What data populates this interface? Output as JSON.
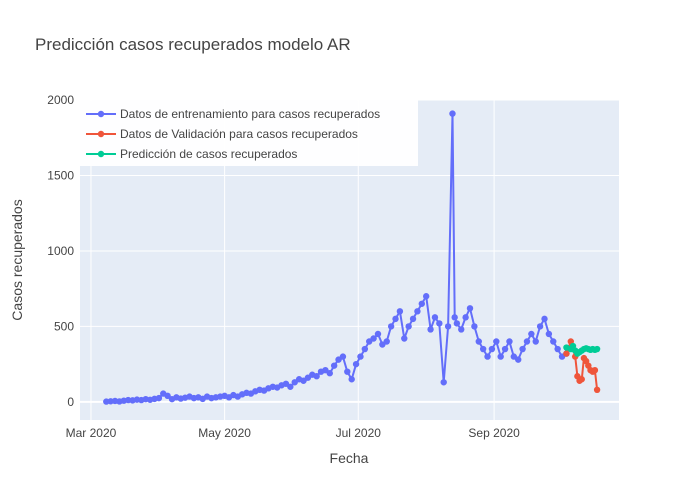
{
  "chart_data": {
    "type": "line",
    "title": "Predicción casos recuperados modelo AR",
    "xlabel": "Fecha",
    "ylabel": "Casos  recuperados",
    "x_type": "date",
    "xlim": [
      "2020-02-25",
      "2020-10-28"
    ],
    "ylim": [
      -120,
      2000
    ],
    "grid": true,
    "legend_position": "top-left",
    "x_ticks": [
      {
        "date": "2020-03-01",
        "label": "Mar 2020"
      },
      {
        "date": "2020-05-01",
        "label": "May 2020"
      },
      {
        "date": "2020-07-01",
        "label": "Jul 2020"
      },
      {
        "date": "2020-09-01",
        "label": "Sep 2020"
      }
    ],
    "y_ticks": [
      0,
      500,
      1000,
      1500,
      2000
    ],
    "series": [
      {
        "name": "Datos de entrenamiento para casos recuperados",
        "color": "#636efa",
        "x": [
          "2020-03-08",
          "2020-03-10",
          "2020-03-12",
          "2020-03-14",
          "2020-03-16",
          "2020-03-18",
          "2020-03-20",
          "2020-03-22",
          "2020-03-24",
          "2020-03-26",
          "2020-03-28",
          "2020-03-30",
          "2020-04-01",
          "2020-04-03",
          "2020-04-05",
          "2020-04-07",
          "2020-04-09",
          "2020-04-11",
          "2020-04-13",
          "2020-04-15",
          "2020-04-17",
          "2020-04-19",
          "2020-04-21",
          "2020-04-23",
          "2020-04-25",
          "2020-04-27",
          "2020-04-29",
          "2020-05-01",
          "2020-05-03",
          "2020-05-05",
          "2020-05-07",
          "2020-05-09",
          "2020-05-11",
          "2020-05-13",
          "2020-05-15",
          "2020-05-17",
          "2020-05-19",
          "2020-05-21",
          "2020-05-23",
          "2020-05-25",
          "2020-05-27",
          "2020-05-29",
          "2020-05-31",
          "2020-06-02",
          "2020-06-04",
          "2020-06-06",
          "2020-06-08",
          "2020-06-10",
          "2020-06-12",
          "2020-06-14",
          "2020-06-16",
          "2020-06-18",
          "2020-06-20",
          "2020-06-22",
          "2020-06-24",
          "2020-06-26",
          "2020-06-28",
          "2020-06-30",
          "2020-07-02",
          "2020-07-04",
          "2020-07-06",
          "2020-07-08",
          "2020-07-10",
          "2020-07-12",
          "2020-07-14",
          "2020-07-16",
          "2020-07-18",
          "2020-07-20",
          "2020-07-22",
          "2020-07-24",
          "2020-07-26",
          "2020-07-28",
          "2020-07-30",
          "2020-08-01",
          "2020-08-03",
          "2020-08-05",
          "2020-08-07",
          "2020-08-09",
          "2020-08-11",
          "2020-08-13",
          "2020-08-14",
          "2020-08-15",
          "2020-08-17",
          "2020-08-19",
          "2020-08-21",
          "2020-08-23",
          "2020-08-25",
          "2020-08-27",
          "2020-08-29",
          "2020-08-31",
          "2020-09-02",
          "2020-09-04",
          "2020-09-06",
          "2020-09-08",
          "2020-09-10",
          "2020-09-12",
          "2020-09-14",
          "2020-09-16",
          "2020-09-18",
          "2020-09-20",
          "2020-09-22",
          "2020-09-24",
          "2020-09-26",
          "2020-09-28",
          "2020-09-30",
          "2020-10-02",
          "2020-10-04"
        ],
        "y": [
          2,
          4,
          6,
          3,
          8,
          12,
          10,
          15,
          12,
          18,
          14,
          20,
          25,
          55,
          40,
          18,
          30,
          22,
          28,
          35,
          25,
          30,
          20,
          35,
          25,
          30,
          35,
          40,
          30,
          45,
          35,
          50,
          60,
          55,
          70,
          80,
          75,
          90,
          100,
          95,
          110,
          120,
          100,
          130,
          150,
          140,
          160,
          180,
          170,
          200,
          210,
          190,
          240,
          280,
          300,
          200,
          150,
          250,
          300,
          350,
          400,
          420,
          450,
          380,
          400,
          500,
          550,
          600,
          420,
          500,
          550,
          600,
          650,
          700,
          480,
          560,
          520,
          130,
          500,
          1910,
          560,
          520,
          480,
          560,
          620,
          500,
          400,
          350,
          300,
          350,
          400,
          300,
          350,
          400,
          300,
          280,
          350,
          400,
          450,
          400,
          500,
          550,
          450,
          400,
          350,
          300,
          320
        ]
      },
      {
        "name": "Datos de Validación para casos recuperados",
        "color": "#ef553b",
        "x": [
          "2020-10-04",
          "2020-10-06",
          "2020-10-08",
          "2020-10-09",
          "2020-10-10",
          "2020-10-11",
          "2020-10-12",
          "2020-10-13",
          "2020-10-14",
          "2020-10-15",
          "2020-10-16",
          "2020-10-17",
          "2020-10-18"
        ],
        "y": [
          320,
          400,
          300,
          170,
          140,
          150,
          290,
          270,
          240,
          210,
          200,
          210,
          80
        ]
      },
      {
        "name": "Predicción de casos recuperados",
        "color": "#00cc96",
        "x": [
          "2020-10-04",
          "2020-10-06",
          "2020-10-07",
          "2020-10-08",
          "2020-10-09",
          "2020-10-10",
          "2020-10-11",
          "2020-10-12",
          "2020-10-13",
          "2020-10-14",
          "2020-10-15",
          "2020-10-16",
          "2020-10-17",
          "2020-10-18"
        ],
        "y": [
          360,
          350,
          370,
          340,
          320,
          330,
          340,
          350,
          355,
          350,
          345,
          350,
          345,
          350
        ]
      }
    ]
  }
}
